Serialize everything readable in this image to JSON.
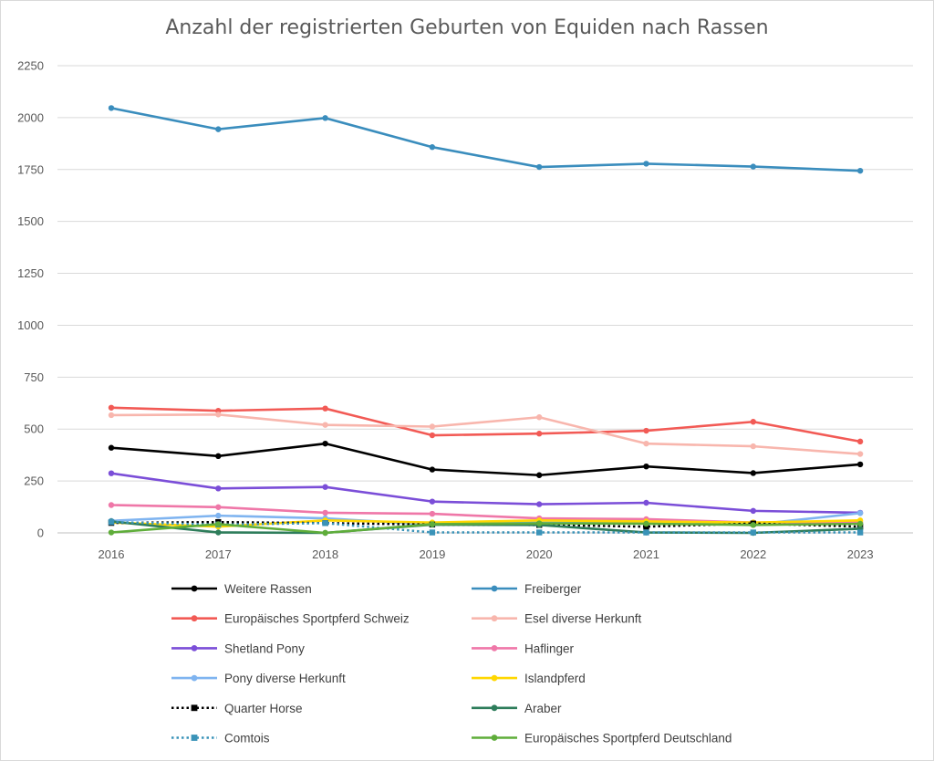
{
  "chart_data": {
    "type": "line",
    "title": "Anzahl der registrierten Geburten von Equiden nach Rassen",
    "xlabel": "",
    "ylabel": "",
    "ylim": [
      0,
      2250
    ],
    "yticks": [
      "0",
      "250",
      "500",
      "750",
      "1000",
      "1250",
      "1500",
      "1750",
      "2000",
      "2250"
    ],
    "categories": [
      "2016",
      "2017",
      "2018",
      "2019",
      "2020",
      "2021",
      "2022",
      "2023"
    ],
    "grid": "horizontal",
    "legend_position": "bottom",
    "series": [
      {
        "name": "Weitere Rassen",
        "color": "#000000",
        "style": "solid",
        "marker": "circle",
        "values": [
          410,
          370,
          430,
          305,
          278,
          320,
          288,
          330
        ]
      },
      {
        "name": "Freiberger",
        "color": "#3a8dbd",
        "style": "solid",
        "marker": "circle",
        "values": [
          2046,
          1944,
          1998,
          1858,
          1762,
          1778,
          1764,
          1744
        ]
      },
      {
        "name": "Europäisches Sportpferd Schweiz",
        "color": "#f25a55",
        "style": "solid",
        "marker": "circle",
        "values": [
          603,
          588,
          599,
          470,
          478,
          492,
          535,
          440
        ]
      },
      {
        "name": "Esel diverse Herkunft",
        "color": "#f8b6ad",
        "style": "solid",
        "marker": "circle",
        "values": [
          567,
          570,
          520,
          512,
          557,
          430,
          417,
          380
        ]
      },
      {
        "name": "Shetland Pony",
        "color": "#7b4ed8",
        "style": "solid",
        "marker": "circle",
        "values": [
          287,
          214,
          221,
          151,
          138,
          145,
          106,
          97
        ]
      },
      {
        "name": "Haflinger",
        "color": "#ef77a8",
        "style": "solid",
        "marker": "circle",
        "values": [
          134,
          124,
          97,
          92,
          70,
          66,
          50,
          50
        ]
      },
      {
        "name": "Pony diverse Herkunft",
        "color": "#7fb4f0",
        "style": "solid",
        "marker": "circle",
        "values": [
          58,
          83,
          70,
          40,
          50,
          50,
          40,
          95
        ]
      },
      {
        "name": "Islandpferd",
        "color": "#ffd700",
        "style": "solid",
        "marker": "circle",
        "values": [
          50,
          30,
          60,
          50,
          60,
          55,
          50,
          60
        ]
      },
      {
        "name": "Quarter Horse",
        "color": "#000000",
        "style": "dotted",
        "marker": "square",
        "values": [
          48,
          52,
          47,
          40,
          38,
          30,
          45,
          30
        ]
      },
      {
        "name": "Araber",
        "color": "#2e7d5b",
        "style": "solid",
        "marker": "circle",
        "values": [
          55,
          2,
          0,
          40,
          38,
          2,
          0,
          20
        ]
      },
      {
        "name": "Comtois",
        "color": "#3a93b8",
        "style": "dotted",
        "marker": "square",
        "values": [
          52,
          40,
          47,
          2,
          2,
          2,
          2,
          2
        ]
      },
      {
        "name": "Europäisches Sportpferd Deutschland",
        "color": "#5fad3a",
        "style": "solid",
        "marker": "circle",
        "values": [
          2,
          42,
          0,
          42,
          46,
          44,
          38,
          44
        ]
      }
    ]
  }
}
